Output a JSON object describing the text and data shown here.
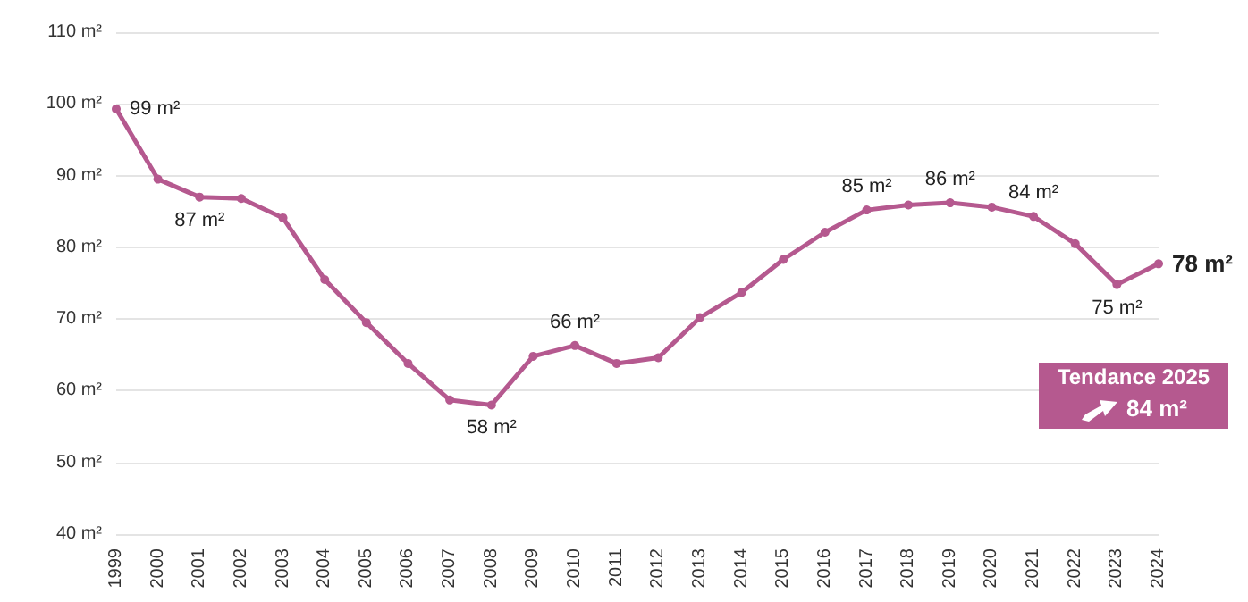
{
  "chart_data": {
    "type": "line",
    "categories": [
      "1999",
      "2000",
      "2001",
      "2002",
      "2003",
      "2004",
      "2005",
      "2006",
      "2007",
      "2008",
      "2009",
      "2010",
      "2011",
      "2012",
      "2013",
      "2014",
      "2015",
      "2016",
      "2017",
      "2018",
      "2019",
      "2020",
      "2021",
      "2022",
      "2023",
      "2024"
    ],
    "series": [
      {
        "color": "#b5598f",
        "values": [
          99.3,
          89.5,
          87.0,
          86.8,
          84.1,
          75.5,
          69.5,
          63.8,
          58.7,
          58.0,
          64.8,
          66.3,
          63.8,
          64.6,
          70.2,
          73.7,
          78.3,
          82.1,
          85.2,
          85.9,
          86.2,
          85.6,
          84.3,
          80.5,
          74.8,
          77.7
        ],
        "value_labels": [
          "99 m²",
          null,
          "87 m²",
          null,
          null,
          null,
          null,
          null,
          null,
          "58 m²",
          null,
          "66 m²",
          null,
          null,
          null,
          null,
          null,
          null,
          "85 m²",
          null,
          "86 m²",
          null,
          "84 m²",
          null,
          "75 m²",
          "78 m²"
        ]
      }
    ],
    "ylim": [
      40,
      110
    ],
    "yticks": [
      {
        "value": 40,
        "label": "40 m²"
      },
      {
        "value": 50,
        "label": "50 m²"
      },
      {
        "value": 60,
        "label": "60 m²"
      },
      {
        "value": 70,
        "label": "70 m²"
      },
      {
        "value": 80,
        "label": "80 m²"
      },
      {
        "value": 90,
        "label": "90 m²"
      },
      {
        "value": 100,
        "label": "100 m²"
      },
      {
        "value": 110,
        "label": "110 m²"
      }
    ],
    "grid": "y",
    "marker": "circle",
    "line_style": "solid",
    "annotations": [
      "Tendance 2025",
      "84 m²"
    ]
  }
}
